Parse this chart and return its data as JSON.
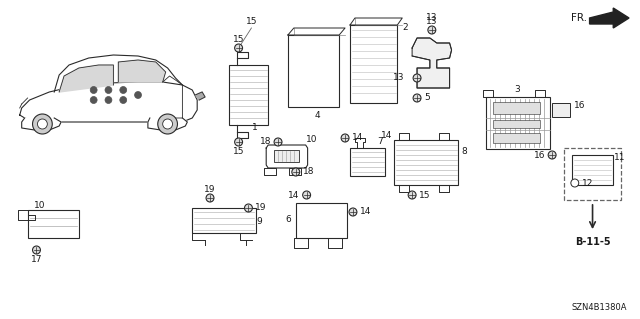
{
  "bg_color": "#ffffff",
  "diagram_code": "SZN4B1380A",
  "fig_width": 6.4,
  "fig_height": 3.19,
  "dpi": 100,
  "line_color": "#2a2a2a",
  "text_color": "#1a1a1a",
  "font_size": 6.5,
  "fr_label": "FR.",
  "b115_label": "B-11-5"
}
